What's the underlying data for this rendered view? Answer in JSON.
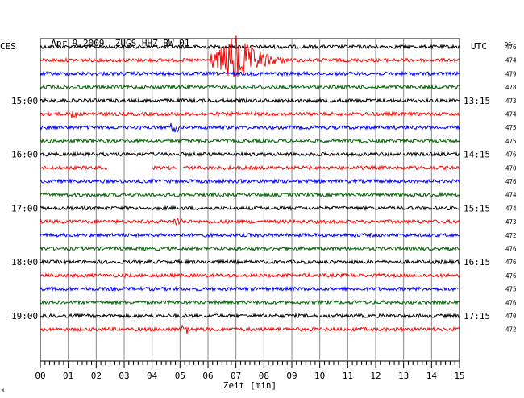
{
  "header": {
    "date": "Apr 9,2009",
    "station": "ZUGS HHZ BW 01",
    "left_zone": "CES",
    "right_zone": "UTC",
    "dc_label": "DC"
  },
  "chart_data": {
    "type": "line",
    "title": "Apr 9,2009  ZUGS HHZ BW 01",
    "xlabel": "Zeit [min]",
    "x_ticks": [
      "00",
      "01",
      "02",
      "03",
      "04",
      "05",
      "06",
      "07",
      "08",
      "09",
      "10",
      "11",
      "12",
      "13",
      "14",
      "15"
    ],
    "xlim": [
      0,
      15
    ],
    "grid": true,
    "trace_colors": [
      "#000000",
      "#ff0000",
      "#0000ff",
      "#006400"
    ],
    "left_time_labels": [
      {
        "trace": 4,
        "label": "15:00"
      },
      {
        "trace": 8,
        "label": "16:00"
      },
      {
        "trace": 12,
        "label": "17:00"
      },
      {
        "trace": 16,
        "label": "18:00"
      },
      {
        "trace": 20,
        "label": "19:00"
      }
    ],
    "right_time_labels": [
      {
        "trace": 4,
        "label": "13:15"
      },
      {
        "trace": 8,
        "label": "14:15"
      },
      {
        "trace": 12,
        "label": "15:15"
      },
      {
        "trace": 16,
        "label": "16:15"
      },
      {
        "trace": 20,
        "label": "17:15"
      }
    ],
    "dc_values": [
      "476",
      "474",
      "479",
      "478",
      "473",
      "474",
      "475",
      "475",
      "476",
      "470",
      "476",
      "474",
      "474",
      "473",
      "472",
      "476",
      "476",
      "476",
      "475",
      "476",
      "470",
      "472"
    ],
    "events": [
      {
        "trace": 1,
        "start_min": 6.0,
        "end_min": 9.2,
        "peak_min": 7.0,
        "amplitude": "large"
      },
      {
        "trace": 1,
        "start_min": 6.1,
        "end_min": 6.5,
        "amplitude": "medium"
      },
      {
        "trace": 5,
        "start_min": 1.1,
        "end_min": 1.3,
        "amplitude": "small"
      }
    ],
    "gaps": [
      {
        "trace": 9,
        "start_min": 2.4,
        "end_min": 4.0
      },
      {
        "trace": 9,
        "start_min": 4.9,
        "end_min": 5.1
      }
    ],
    "minor_bursts": [
      {
        "trace": 1,
        "at_min": 6.3
      },
      {
        "trace": 6,
        "at_min": 4.8
      },
      {
        "trace": 13,
        "at_min": 4.9
      },
      {
        "trace": 21,
        "at_min": 5.2
      }
    ]
  }
}
